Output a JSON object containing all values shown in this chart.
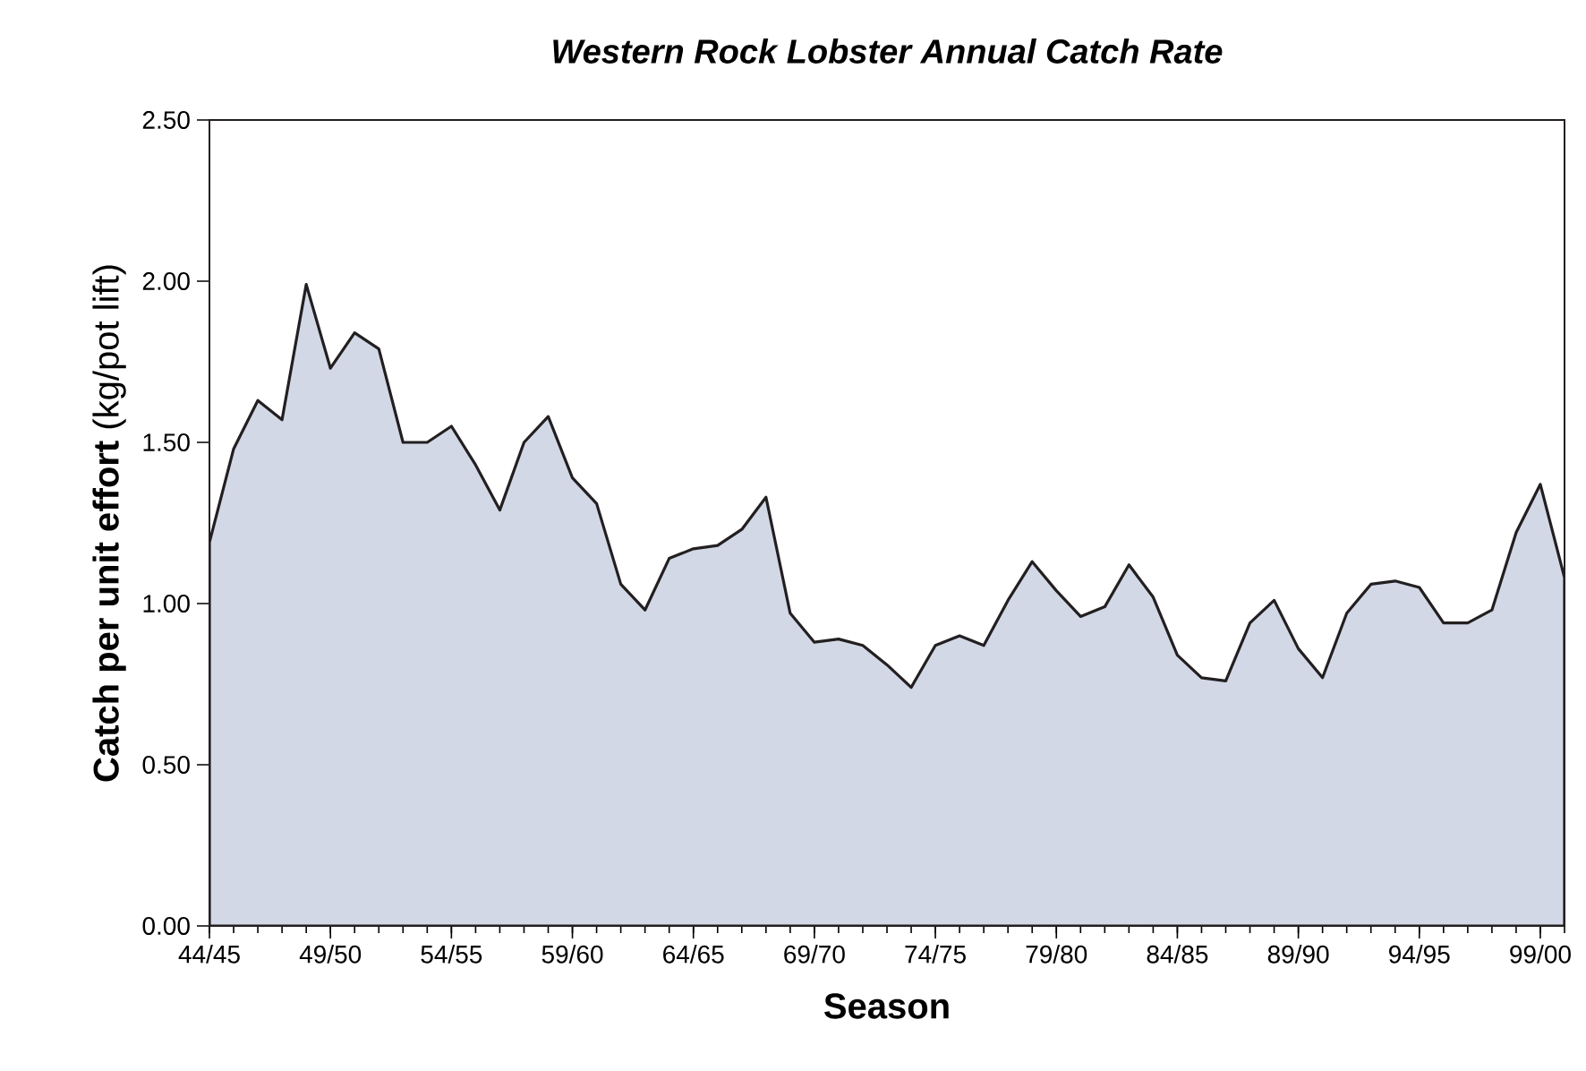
{
  "chart_data": {
    "type": "area",
    "title": "Western Rock Lobster Annual Catch Rate",
    "xlabel": "Season",
    "ylabel": "**Catch per unit effort** (kg/pot lift)",
    "categories": [
      "44/45",
      null,
      null,
      null,
      null,
      "49/50",
      null,
      null,
      null,
      null,
      "54/55",
      null,
      null,
      null,
      null,
      "59/60",
      null,
      null,
      null,
      null,
      "64/65",
      null,
      null,
      null,
      null,
      "69/70",
      null,
      null,
      null,
      null,
      "74/75",
      null,
      null,
      null,
      null,
      "79/80",
      null,
      null,
      null,
      null,
      "84/85",
      null,
      null,
      null,
      null,
      "89/90",
      null,
      null,
      null,
      null,
      "94/95",
      null,
      null,
      null,
      null,
      "99/00",
      null
    ],
    "series": [
      {
        "color": "#d2d8e6",
        "values": [
          1.19,
          1.48,
          1.63,
          1.57,
          1.99,
          1.73,
          1.84,
          1.79,
          1.5,
          1.5,
          1.55,
          1.43,
          1.29,
          1.5,
          1.58,
          1.39,
          1.31,
          1.06,
          0.98,
          1.14,
          1.17,
          1.18,
          1.23,
          1.33,
          0.97,
          0.88,
          0.89,
          0.87,
          0.81,
          0.74,
          0.87,
          0.9,
          0.87,
          1.01,
          1.13,
          1.04,
          0.96,
          0.99,
          1.12,
          1.02,
          0.84,
          0.77,
          0.76,
          0.94,
          1.01,
          0.86,
          0.77,
          0.97,
          1.06,
          1.07,
          1.05,
          0.94,
          0.94,
          0.98,
          1.22,
          1.37,
          1.08
        ]
      }
    ],
    "ylim": [
      0,
      2.5
    ],
    "yticks": [
      {
        "value": 0,
        "label": "0.00"
      },
      {
        "value": 0.5,
        "label": "0.50"
      },
      {
        "value": 1,
        "label": "1.00"
      },
      {
        "value": 1.5,
        "label": "1.50"
      },
      {
        "value": 2,
        "label": "2.00"
      },
      {
        "value": 2.5,
        "label": "2.50"
      }
    ]
  }
}
